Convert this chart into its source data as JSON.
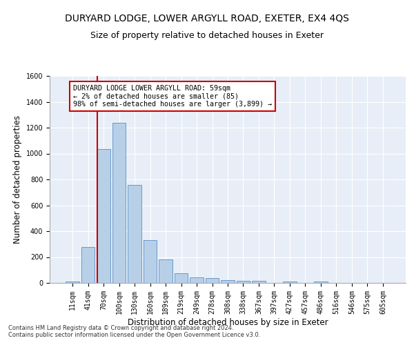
{
  "title": "DURYARD LODGE, LOWER ARGYLL ROAD, EXETER, EX4 4QS",
  "subtitle": "Size of property relative to detached houses in Exeter",
  "xlabel": "Distribution of detached houses by size in Exeter",
  "ylabel": "Number of detached properties",
  "categories": [
    "11sqm",
    "41sqm",
    "70sqm",
    "100sqm",
    "130sqm",
    "160sqm",
    "189sqm",
    "219sqm",
    "249sqm",
    "278sqm",
    "308sqm",
    "338sqm",
    "367sqm",
    "397sqm",
    "427sqm",
    "457sqm",
    "486sqm",
    "516sqm",
    "546sqm",
    "575sqm",
    "605sqm"
  ],
  "values": [
    10,
    275,
    1035,
    1240,
    760,
    330,
    180,
    75,
    45,
    38,
    22,
    15,
    18,
    0,
    12,
    0,
    12,
    0,
    0,
    0,
    0
  ],
  "bar_color": "#b8cfe8",
  "bar_edge_color": "#6699cc",
  "vline_color": "#cc0000",
  "annotation_text": "DURYARD LODGE LOWER ARGYLL ROAD: 59sqm\n← 2% of detached houses are smaller (85)\n98% of semi-detached houses are larger (3,899) →",
  "annotation_box_color": "#ffffff",
  "annotation_border_color": "#cc0000",
  "ylim": [
    0,
    1600
  ],
  "yticks": [
    0,
    200,
    400,
    600,
    800,
    1000,
    1200,
    1400,
    1600
  ],
  "footer1": "Contains HM Land Registry data © Crown copyright and database right 2024.",
  "footer2": "Contains public sector information licensed under the Open Government Licence v3.0.",
  "plot_bg_color": "#e8eef7",
  "title_fontsize": 10,
  "subtitle_fontsize": 9,
  "tick_fontsize": 7,
  "label_fontsize": 8.5,
  "footer_fontsize": 6
}
